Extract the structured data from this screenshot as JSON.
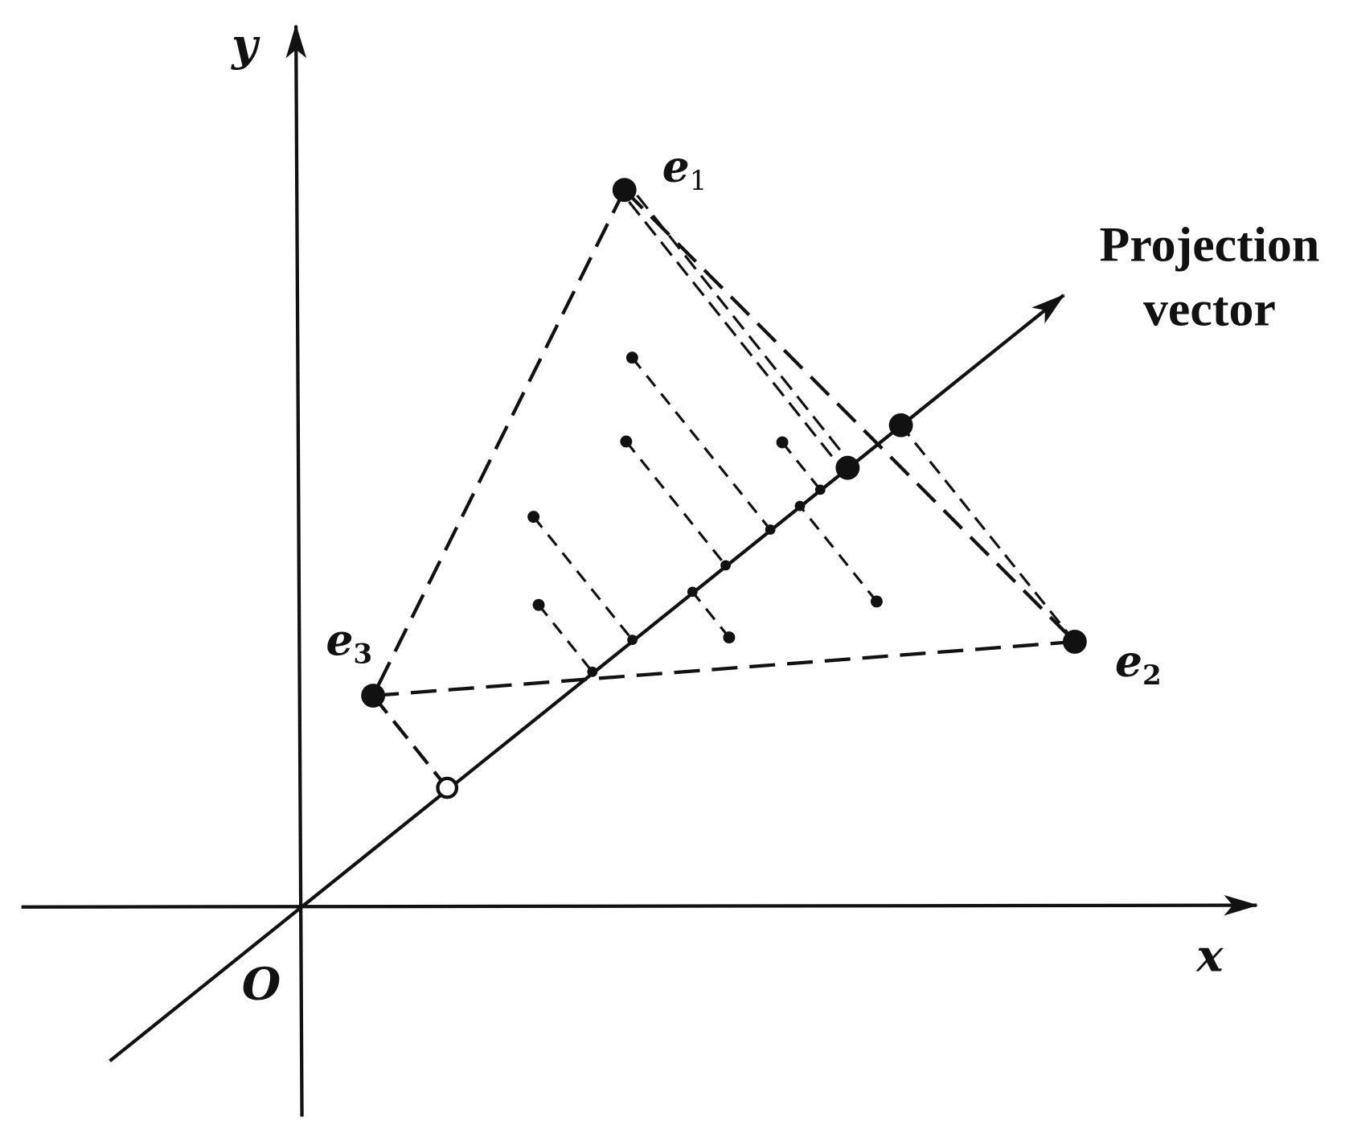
{
  "axes": {
    "x_label": "x",
    "y_label": "y",
    "origin_label": "O"
  },
  "points": {
    "e1": "e",
    "e1_sub": "1",
    "e2": "e",
    "e2_sub": "2",
    "e3": "e",
    "e3_sub": "3"
  },
  "projection_label": {
    "line1": "Projection",
    "line2": "vector"
  },
  "colors": {
    "ink": "#111111",
    "background": "#ffffff"
  }
}
